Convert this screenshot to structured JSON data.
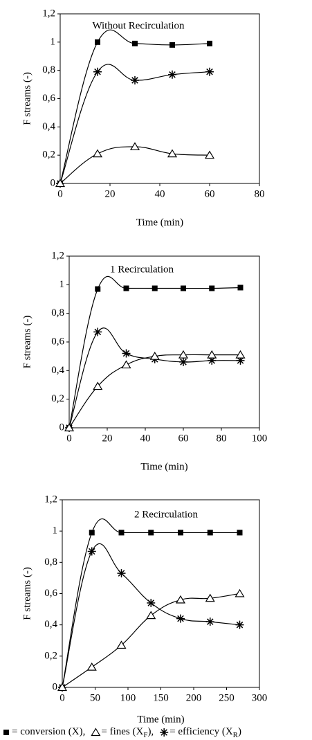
{
  "chart_data": [
    {
      "type": "line",
      "annotation": "Without Recirculation",
      "xlabel": "Time (min)",
      "ylabel": "F streams (-)",
      "xlim": [
        0,
        80
      ],
      "xticks": [
        0,
        20,
        40,
        60,
        80
      ],
      "ylim": [
        0,
        1.2
      ],
      "yticks": [
        0,
        {
          "value": 0.2,
          "label": "0,2"
        },
        {
          "value": 0.4,
          "label": "0,4"
        },
        {
          "value": 0.6,
          "label": "0,6"
        },
        {
          "value": 0.8,
          "label": "0,8"
        },
        1,
        {
          "value": 1.2,
          "label": "1,2"
        }
      ],
      "x": [
        0,
        15,
        30,
        45,
        60
      ],
      "series": [
        {
          "marker": "square",
          "color": "#000000",
          "values": [
            0,
            1.0,
            0.99,
            0.98,
            0.99
          ]
        },
        {
          "marker": "asterisk",
          "color": "#000000",
          "values": [
            0,
            0.79,
            0.73,
            0.77,
            0.79
          ]
        },
        {
          "marker": "triangle",
          "color": "#000000",
          "values": [
            0,
            0.21,
            0.26,
            0.21,
            0.2
          ]
        }
      ]
    },
    {
      "type": "line",
      "annotation": "1 Recirculation",
      "xlabel": "Time (min)",
      "ylabel": "F streams (-)",
      "xlim": [
        0,
        100
      ],
      "xticks": [
        0,
        20,
        40,
        60,
        80,
        100
      ],
      "ylim": [
        0,
        1.2
      ],
      "yticks": [
        0,
        {
          "value": 0.2,
          "label": "0,2"
        },
        {
          "value": 0.4,
          "label": "0,4"
        },
        {
          "value": 0.6,
          "label": "0,6"
        },
        {
          "value": 0.8,
          "label": "0,8"
        },
        1,
        {
          "value": 1.2,
          "label": "1,2"
        }
      ],
      "x": [
        0,
        15,
        30,
        45,
        60,
        75,
        90
      ],
      "series": [
        {
          "marker": "square",
          "color": "#000000",
          "values": [
            0,
            0.97,
            0.975,
            0.975,
            0.975,
            0.975,
            0.98
          ]
        },
        {
          "marker": "asterisk",
          "color": "#000000",
          "values": [
            0,
            0.67,
            0.52,
            0.48,
            0.46,
            0.47,
            0.47
          ]
        },
        {
          "marker": "triangle",
          "color": "#000000",
          "values": [
            0,
            0.29,
            0.44,
            0.5,
            0.51,
            0.51,
            0.51
          ]
        }
      ]
    },
    {
      "type": "line",
      "annotation": "2 Recirculation",
      "xlabel": "Time (min)",
      "ylabel": "F streams (-)",
      "xlim": [
        0,
        300
      ],
      "xticks": [
        0,
        50,
        100,
        150,
        200,
        250,
        300
      ],
      "ylim": [
        0,
        1.2
      ],
      "yticks": [
        0,
        {
          "value": 0.2,
          "label": "0,2"
        },
        {
          "value": 0.4,
          "label": "0,4"
        },
        {
          "value": 0.6,
          "label": "0,6"
        },
        {
          "value": 0.8,
          "label": "0,8"
        },
        1,
        {
          "value": 1.2,
          "label": "1,2"
        }
      ],
      "x": [
        0,
        45,
        90,
        135,
        180,
        225,
        270
      ],
      "series": [
        {
          "marker": "square",
          "color": "#000000",
          "values": [
            0,
            0.99,
            0.99,
            0.99,
            0.99,
            0.99,
            0.99
          ]
        },
        {
          "marker": "asterisk",
          "color": "#000000",
          "values": [
            0,
            0.87,
            0.73,
            0.54,
            0.44,
            0.42,
            0.4
          ]
        },
        {
          "marker": "triangle",
          "color": "#000000",
          "values": [
            0,
            0.13,
            0.27,
            0.46,
            0.56,
            0.57,
            0.6
          ]
        }
      ]
    }
  ],
  "legend": [
    {
      "marker": "square",
      "text": "= conversion (X),"
    },
    {
      "marker": "triangle",
      "text": "= fines (X",
      "sub": "F",
      "tail": "),"
    },
    {
      "marker": "asterisk",
      "text": "= efficiency (X",
      "sub": "R",
      "tail": ")"
    }
  ]
}
